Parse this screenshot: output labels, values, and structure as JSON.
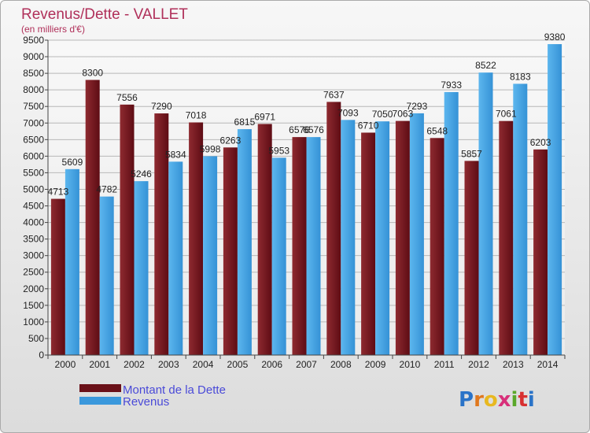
{
  "chart_data": {
    "type": "bar",
    "title": "Revenus/Dette - VALLET",
    "subtitle": "(en milliers d'€)",
    "categories": [
      "2000",
      "2001",
      "2002",
      "2003",
      "2004",
      "2005",
      "2006",
      "2007",
      "2008",
      "2009",
      "2010",
      "2011",
      "2012",
      "2013",
      "2014"
    ],
    "series": [
      {
        "name": "Montant de la Dette",
        "color": "#7a1b22",
        "values": [
          4713,
          8300,
          7556,
          7290,
          7018,
          6263,
          6971,
          6576,
          7637,
          6710,
          7063,
          6548,
          5857,
          7061,
          6203
        ]
      },
      {
        "name": "Revenus",
        "color": "#4aa8e6",
        "values": [
          5609,
          4782,
          5246,
          5834,
          5998,
          6815,
          5953,
          6576,
          7093,
          7050,
          7293,
          7933,
          8522,
          8183,
          9380
        ]
      }
    ],
    "ylim": [
      0,
      9500
    ],
    "ytick_step": 500,
    "grid": true
  },
  "brand": {
    "logo_text": "Proxiti",
    "letter_colors": [
      "#2a73c8",
      "#e0781e",
      "#e8b820",
      "#d8307a",
      "#5aa82a",
      "#d83030",
      "#2a73c8"
    ]
  }
}
